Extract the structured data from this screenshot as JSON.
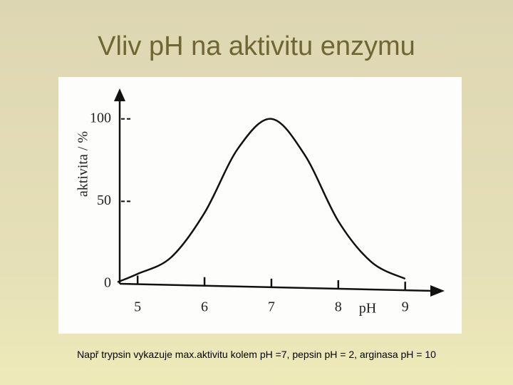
{
  "slide": {
    "title": "Vliv pH na aktivitu enzymu",
    "caption": "Např trypsin vykazuje max.aktivitu kolem pH =7, pepsin pH = 2, arginasa pH = 10"
  },
  "chart_data": {
    "type": "line",
    "x_label": "pH",
    "y_label": "aktivita / %",
    "x": [
      4.7,
      5,
      5.5,
      6,
      6.5,
      7,
      7.5,
      8,
      8.5,
      9
    ],
    "series": [
      {
        "color": "#111111",
        "values": [
          1,
          6,
          16,
          43,
          82,
          100,
          78,
          38,
          13,
          3
        ]
      }
    ],
    "xlim": [
      4.7,
      9.6
    ],
    "ylim": [
      0,
      115
    ],
    "xticks": [
      5,
      6,
      7,
      8,
      9
    ],
    "yticks": [
      0,
      50,
      100
    ]
  }
}
